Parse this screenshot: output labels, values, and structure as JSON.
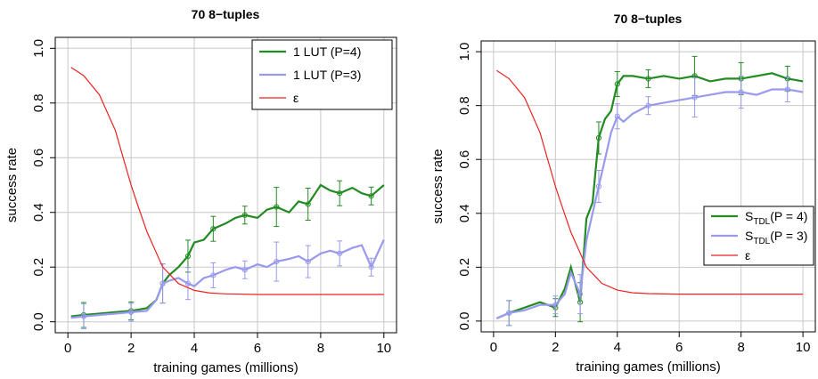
{
  "chart_data": [
    {
      "type": "line",
      "title": "70 8−tuples",
      "xlabel": "training games (millions)",
      "ylabel": "success rate",
      "xlim": [
        0,
        10
      ],
      "ylim": [
        0,
        1
      ],
      "xticks": [
        "0",
        "2",
        "4",
        "6",
        "8",
        "10"
      ],
      "yticks": [
        "0.0",
        "0.2",
        "0.4",
        "0.6",
        "0.8",
        "1.0"
      ],
      "grid": true,
      "legend_position": "top-right",
      "series": [
        {
          "name": "1 LUT (P=4)",
          "color": "#228b22",
          "x": [
            0.1,
            0.5,
            1.0,
            1.5,
            2.0,
            2.5,
            2.8,
            3.0,
            3.2,
            3.5,
            3.8,
            4.0,
            4.3,
            4.6,
            5.0,
            5.3,
            5.6,
            6.0,
            6.3,
            6.6,
            7.0,
            7.3,
            7.6,
            8.0,
            8.3,
            8.6,
            9.0,
            9.3,
            9.6,
            10.0
          ],
          "y": [
            0.02,
            0.025,
            0.03,
            0.035,
            0.04,
            0.05,
            0.08,
            0.14,
            0.17,
            0.2,
            0.24,
            0.29,
            0.3,
            0.34,
            0.36,
            0.38,
            0.39,
            0.38,
            0.41,
            0.42,
            0.4,
            0.44,
            0.43,
            0.5,
            0.48,
            0.47,
            0.49,
            0.47,
            0.46,
            0.5
          ]
        },
        {
          "name": "1 LUT (P=3)",
          "color": "#9999ee",
          "x": [
            0.1,
            0.5,
            1.0,
            1.5,
            2.0,
            2.5,
            2.8,
            3.0,
            3.2,
            3.5,
            3.8,
            4.0,
            4.3,
            4.6,
            5.0,
            5.3,
            5.6,
            6.0,
            6.3,
            6.6,
            7.0,
            7.3,
            7.6,
            8.0,
            8.3,
            8.6,
            9.0,
            9.3,
            9.6,
            10.0
          ],
          "y": [
            0.015,
            0.02,
            0.025,
            0.03,
            0.035,
            0.04,
            0.08,
            0.14,
            0.15,
            0.16,
            0.14,
            0.13,
            0.16,
            0.17,
            0.19,
            0.2,
            0.19,
            0.21,
            0.2,
            0.22,
            0.23,
            0.24,
            0.22,
            0.25,
            0.26,
            0.25,
            0.27,
            0.28,
            0.2,
            0.3
          ]
        },
        {
          "name": "ε",
          "color": "#ee2222",
          "x": [
            0.1,
            0.5,
            1.0,
            1.5,
            1.8,
            2.0,
            2.2,
            2.5,
            3.0,
            3.5,
            4.0,
            4.5,
            5.0,
            6.0,
            7.0,
            8.0,
            10.0
          ],
          "y": [
            0.93,
            0.9,
            0.83,
            0.7,
            0.58,
            0.5,
            0.43,
            0.33,
            0.2,
            0.14,
            0.115,
            0.105,
            0.102,
            0.1,
            0.1,
            0.1,
            0.1
          ]
        }
      ]
    },
    {
      "type": "line",
      "title": "70 8−tuples",
      "xlabel": "training games (millions)",
      "ylabel": "success rate",
      "xlim": [
        0,
        10
      ],
      "ylim": [
        0,
        1
      ],
      "xticks": [
        "0",
        "2",
        "4",
        "6",
        "8",
        "10"
      ],
      "yticks": [
        "0.0",
        "0.2",
        "0.4",
        "0.6",
        "0.8",
        "1.0"
      ],
      "grid": true,
      "legend_position": "right",
      "series": [
        {
          "name": "S",
          "name_sub": "TDL",
          "name_tail": "(P = 4)",
          "color": "#228b22",
          "x": [
            0.1,
            0.5,
            1.0,
            1.5,
            2.0,
            2.3,
            2.5,
            2.8,
            3.0,
            3.2,
            3.4,
            3.6,
            3.8,
            4.0,
            4.2,
            4.5,
            5.0,
            5.5,
            6.0,
            6.5,
            7.0,
            7.5,
            8.0,
            8.5,
            9.0,
            9.5,
            10.0
          ],
          "y": [
            0.01,
            0.03,
            0.05,
            0.07,
            0.05,
            0.12,
            0.2,
            0.07,
            0.38,
            0.44,
            0.68,
            0.75,
            0.78,
            0.88,
            0.91,
            0.91,
            0.9,
            0.91,
            0.9,
            0.91,
            0.89,
            0.9,
            0.9,
            0.91,
            0.92,
            0.9,
            0.89
          ]
        },
        {
          "name": "S",
          "name_sub": "TDL",
          "name_tail": "(P = 3)",
          "color": "#9999ee",
          "x": [
            0.1,
            0.5,
            1.0,
            1.5,
            2.0,
            2.3,
            2.5,
            2.8,
            3.0,
            3.2,
            3.4,
            3.6,
            3.8,
            4.0,
            4.2,
            4.5,
            5.0,
            5.5,
            6.0,
            6.5,
            7.0,
            7.5,
            8.0,
            8.5,
            9.0,
            9.5,
            10.0
          ],
          "y": [
            0.01,
            0.03,
            0.04,
            0.06,
            0.06,
            0.1,
            0.18,
            0.1,
            0.3,
            0.4,
            0.5,
            0.6,
            0.7,
            0.76,
            0.74,
            0.77,
            0.8,
            0.81,
            0.82,
            0.83,
            0.84,
            0.85,
            0.85,
            0.84,
            0.86,
            0.86,
            0.85
          ]
        },
        {
          "name": "ε",
          "color": "#ee2222",
          "x": [
            0.1,
            0.5,
            1.0,
            1.5,
            1.8,
            2.0,
            2.2,
            2.5,
            3.0,
            3.5,
            4.0,
            4.5,
            5.0,
            6.0,
            7.0,
            8.0,
            10.0
          ],
          "y": [
            0.93,
            0.9,
            0.83,
            0.7,
            0.58,
            0.5,
            0.43,
            0.33,
            0.2,
            0.14,
            0.115,
            0.105,
            0.102,
            0.1,
            0.1,
            0.1,
            0.1
          ]
        }
      ]
    }
  ]
}
